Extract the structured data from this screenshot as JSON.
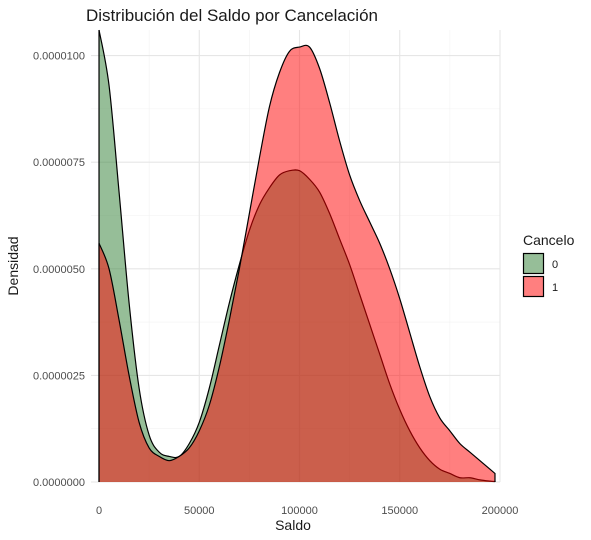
{
  "chart_data": {
    "type": "area",
    "title": "Distribución del Saldo por Cancelación",
    "xlabel": "Saldo",
    "ylabel": "Densidad",
    "xlim": [
      -4000,
      200000
    ],
    "ylim": [
      0,
      1.06e-05
    ],
    "x_ticks": [
      0,
      50000,
      100000,
      150000,
      200000
    ],
    "x_tick_labels": [
      "0",
      "50000",
      "100000",
      "150000",
      "200000"
    ],
    "y_ticks": [
      0,
      2.5e-06,
      5e-06,
      7.5e-06,
      1e-05
    ],
    "y_tick_labels": [
      "0.0000000",
      "0.0000025",
      "0.0000050",
      "0.0000075",
      "0.0000100"
    ],
    "grid": true,
    "legend": {
      "title": "Cancelo",
      "position": "right"
    },
    "series": [
      {
        "name": "0",
        "color": "#2E7D32",
        "x": [
          0,
          5000,
          10000,
          15000,
          20000,
          25000,
          30000,
          35000,
          40000,
          45000,
          50000,
          55000,
          60000,
          65000,
          70000,
          75000,
          80000,
          85000,
          90000,
          95000,
          100000,
          105000,
          110000,
          115000,
          120000,
          125000,
          130000,
          135000,
          140000,
          145000,
          150000,
          155000,
          160000,
          165000,
          170000,
          175000,
          180000,
          185000,
          190000,
          195000,
          197500
        ],
        "y": [
          1.06e-05,
          9.3e-06,
          6.8e-06,
          4.2e-06,
          2.2e-06,
          1.1e-06,
          7e-07,
          6e-07,
          6e-07,
          9e-07,
          1.4e-06,
          2.2e-06,
          3.2e-06,
          4.2e-06,
          5.1e-06,
          5.9e-06,
          6.5e-06,
          6.9e-06,
          7.2e-06,
          7.3e-06,
          7.3e-06,
          7.1e-06,
          6.8e-06,
          6.3e-06,
          5.7e-06,
          5.1e-06,
          4.4e-06,
          3.7e-06,
          3e-06,
          2.3e-06,
          1.7e-06,
          1.2e-06,
          8e-07,
          5e-07,
          3e-07,
          2e-07,
          1e-07,
          1e-07,
          5e-08,
          2e-08,
          1e-08
        ]
      },
      {
        "name": "1",
        "color": "#FF0000",
        "x": [
          0,
          5000,
          10000,
          15000,
          20000,
          25000,
          30000,
          35000,
          40000,
          45000,
          50000,
          55000,
          60000,
          65000,
          70000,
          75000,
          80000,
          85000,
          90000,
          95000,
          100000,
          105000,
          110000,
          115000,
          120000,
          125000,
          130000,
          135000,
          140000,
          145000,
          150000,
          155000,
          160000,
          165000,
          170000,
          175000,
          180000,
          185000,
          190000,
          195000,
          197500
        ],
        "y": [
          5.6e-06,
          5e-06,
          3.8e-06,
          2.5e-06,
          1.4e-06,
          8e-07,
          6e-07,
          5e-07,
          6e-07,
          8e-07,
          1.2e-06,
          1.8e-06,
          2.7e-06,
          3.8e-06,
          5e-06,
          6.3e-06,
          7.6e-06,
          8.8e-06,
          9.6e-06,
          1.01e-05,
          1.02e-05,
          1.02e-05,
          9.7e-06,
          8.9e-06,
          8e-06,
          7.2e-06,
          6.6e-06,
          6.1e-06,
          5.6e-06,
          5e-06,
          4.3e-06,
          3.5e-06,
          2.7e-06,
          2e-06,
          1.5e-06,
          1.2e-06,
          9e-07,
          7e-07,
          5e-07,
          3e-07,
          2e-07
        ]
      }
    ]
  }
}
